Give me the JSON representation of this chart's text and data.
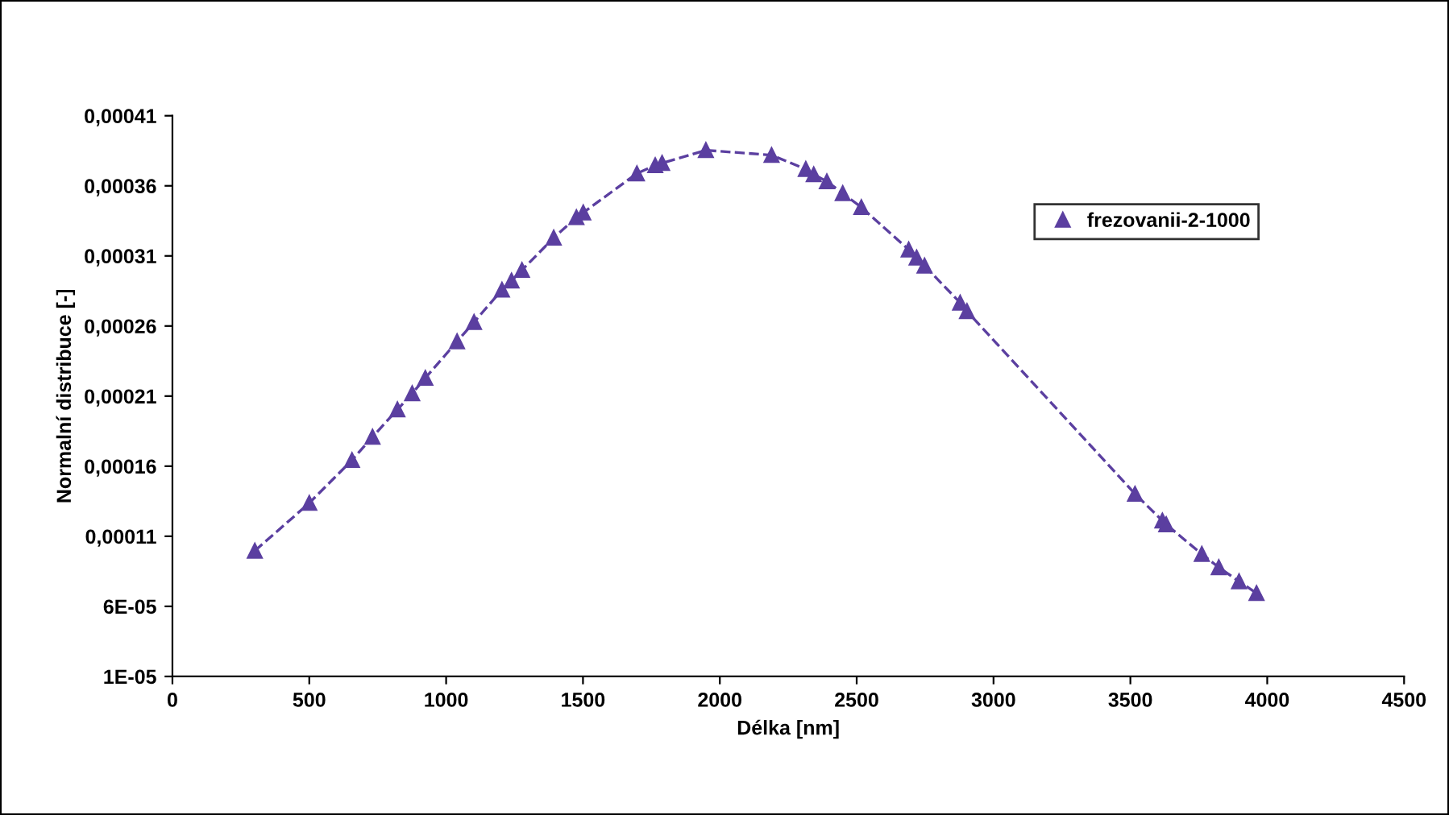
{
  "chart_data": {
    "type": "line",
    "xlabel": "Délka [nm]",
    "ylabel": "Normalní distribuce [-]",
    "series": [
      {
        "name": "frezovanii-2-1000",
        "color": "#5b3fa0",
        "marker": "triangle",
        "line_style": "dashed",
        "x": [
          301,
          500,
          656,
          731,
          822,
          876,
          924,
          1040,
          1102,
          1204,
          1239,
          1277,
          1393,
          1476,
          1501,
          1697,
          1764,
          1789,
          1949,
          2189,
          2314,
          2343,
          2391,
          2449,
          2517,
          2690,
          2719,
          2748,
          2878,
          2903,
          3517,
          3617,
          3631,
          3761,
          3823,
          3897,
          3961
        ],
        "values": [
          9.96e-05,
          0.0001337,
          0.0001643,
          0.0001809,
          0.0002004,
          0.0002119,
          0.0002229,
          0.000249,
          0.0002628,
          0.0002858,
          0.0002923,
          0.0002999,
          0.0003229,
          0.0003375,
          0.0003409,
          0.0003688,
          0.0003746,
          0.0003762,
          0.0003854,
          0.0003819,
          0.0003719,
          0.0003681,
          0.0003631,
          0.0003547,
          0.0003447,
          0.0003145,
          0.0003087,
          0.000303,
          0.0002766,
          0.0002705,
          0.0001402,
          0.0001211,
          0.0001184,
          9.73e-05,
          8.78e-05,
          7.78e-05,
          6.94e-05
        ]
      }
    ],
    "xlim": [
      0,
      4500
    ],
    "xticks": [
      0,
      500,
      1000,
      1500,
      2000,
      2500,
      3000,
      3500,
      4000,
      4500
    ],
    "ylim": [
      1e-05,
      0.00041
    ],
    "yticks": [
      {
        "value": 1e-05,
        "label": "1E-05"
      },
      {
        "value": 6e-05,
        "label": "6E-05"
      },
      {
        "value": 0.00011,
        "label": "0,00011"
      },
      {
        "value": 0.00016,
        "label": "0,00016"
      },
      {
        "value": 0.00021,
        "label": "0,00021"
      },
      {
        "value": 0.00026,
        "label": "0,00026"
      },
      {
        "value": 0.00031,
        "label": "0,00031"
      },
      {
        "value": 0.00036,
        "label": "0,00036"
      },
      {
        "value": 0.00041,
        "label": "0,00041"
      }
    ],
    "grid": false,
    "legend": "top right"
  }
}
